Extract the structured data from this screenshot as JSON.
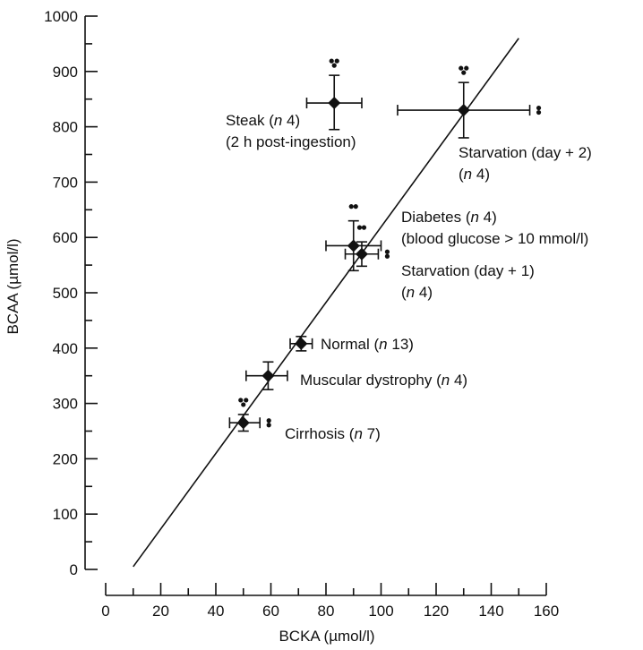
{
  "chart_data": {
    "type": "scatter",
    "title": "",
    "xlabel": "BCKA (µmol/l)",
    "ylabel": "BCAA (µmol/l)",
    "xlim": [
      0,
      160
    ],
    "ylim": [
      0,
      1000
    ],
    "x_ticks": [
      0,
      20,
      40,
      60,
      80,
      100,
      120,
      140,
      160
    ],
    "y_ticks": [
      0,
      100,
      200,
      300,
      400,
      500,
      600,
      700,
      800,
      900,
      1000
    ],
    "x_minor_step": 10,
    "y_minor_step": 50,
    "grid": false,
    "regression_line": {
      "from": [
        10,
        5
      ],
      "to": [
        150,
        960
      ]
    },
    "points": [
      {
        "group": "Steak",
        "n": "4",
        "x": 83,
        "y": 843,
        "x_err": [
          73,
          93
        ],
        "y_err": [
          795,
          893
        ],
        "label": [
          "Steak (",
          "n",
          " 4)"
        ],
        "label2": "(2 h post-ingestion)",
        "sig": [
          {
            "side": "top",
            "marks": 3
          }
        ]
      },
      {
        "group": "Starvation (day + 2)",
        "n": "4",
        "x": 130,
        "y": 830,
        "x_err": [
          106,
          154
        ],
        "y_err": [
          780,
          880
        ],
        "label": [
          "Starvation (day + 2)"
        ],
        "label2": [
          "(",
          "n",
          " 4)"
        ],
        "sig": [
          {
            "side": "top",
            "marks": 3
          },
          {
            "side": "right",
            "marks": 2
          }
        ]
      },
      {
        "group": "Diabetes",
        "n": "4",
        "x": 90,
        "y": 585,
        "x_err": [
          80,
          100
        ],
        "y_err": [
          540,
          630
        ],
        "label": [
          "Diabetes (",
          "n",
          " 4)"
        ],
        "label2": "(blood glucose > 10 mmol/l)",
        "sig": [
          {
            "side": "top",
            "marks": 2
          }
        ]
      },
      {
        "group": "Starvation (day + 1)",
        "n": "4",
        "x": 93,
        "y": 570,
        "x_err": [
          87,
          99
        ],
        "y_err": [
          548,
          592
        ],
        "label": [
          "Starvation (day + 1)"
        ],
        "label2": [
          "(",
          "n",
          " 4)"
        ],
        "sig": [
          {
            "side": "top",
            "marks": 2
          },
          {
            "side": "right",
            "marks": 2
          }
        ]
      },
      {
        "group": "Normal",
        "n": "13",
        "x": 71,
        "y": 408,
        "x_err": [
          67,
          75
        ],
        "y_err": [
          395,
          421
        ],
        "label": [
          "Normal (",
          "n",
          " 13)"
        ],
        "sig": []
      },
      {
        "group": "Muscular dystrophy",
        "n": "4",
        "x": 59,
        "y": 350,
        "x_err": [
          51,
          66
        ],
        "y_err": [
          325,
          375
        ],
        "label": [
          "Muscular dystrophy (",
          "n",
          " 4)"
        ],
        "sig": []
      },
      {
        "group": "Cirrhosis",
        "n": "7",
        "x": 50,
        "y": 265,
        "x_err": [
          45,
          56
        ],
        "y_err": [
          250,
          280
        ],
        "label": [
          "Cirrhosis (",
          "n",
          " 7)"
        ],
        "sig": [
          {
            "side": "top",
            "marks": 3
          },
          {
            "side": "right",
            "marks": 2
          }
        ]
      }
    ]
  }
}
